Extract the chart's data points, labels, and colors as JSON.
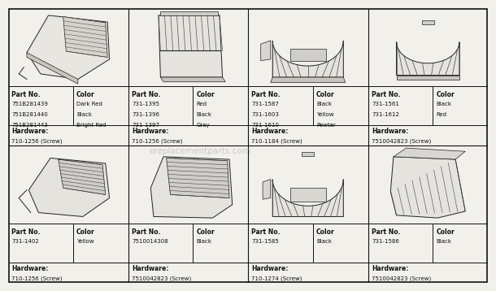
{
  "bg_color": "#f2f0eb",
  "border_color": "#111111",
  "line_color": "#222222",
  "cells": [
    {
      "col": 0,
      "row": 0,
      "parts": [
        {
          "no": "751B281439",
          "color": "Dark Red"
        },
        {
          "no": "751B281440",
          "color": "Black"
        },
        {
          "no": "751B281443",
          "color": "Bright Red"
        }
      ],
      "hardware": "710-1256 (Screw)"
    },
    {
      "col": 1,
      "row": 0,
      "parts": [
        {
          "no": "731-1395",
          "color": "Red"
        },
        {
          "no": "731-1396",
          "color": "Black"
        },
        {
          "no": "731-1397",
          "color": "Gray"
        }
      ],
      "hardware": "710-1256 (Screw)"
    },
    {
      "col": 2,
      "row": 0,
      "parts": [
        {
          "no": "731-1587",
          "color": "Black"
        },
        {
          "no": "731-1603",
          "color": "Yellow"
        },
        {
          "no": "731-1610",
          "color": "Pewter"
        }
      ],
      "hardware": "710-1184 (Screw)"
    },
    {
      "col": 3,
      "row": 0,
      "parts": [
        {
          "no": "731-1561",
          "color": "Black"
        },
        {
          "no": "731-1612",
          "color": "Red"
        }
      ],
      "hardware": "7510042823 (Screw)"
    },
    {
      "col": 0,
      "row": 1,
      "parts": [
        {
          "no": "731-1402",
          "color": "Yellow"
        }
      ],
      "hardware": "710-1256 (Screw)"
    },
    {
      "col": 1,
      "row": 1,
      "parts": [
        {
          "no": "7510014308",
          "color": "Black"
        }
      ],
      "hardware": "7510042823 (Screw)"
    },
    {
      "col": 2,
      "row": 1,
      "parts": [
        {
          "no": "731-1585",
          "color": "Black"
        }
      ],
      "hardware": "710-1274 (Screw)"
    },
    {
      "col": 3,
      "row": 1,
      "parts": [
        {
          "no": "731-1586",
          "color": "Black"
        }
      ],
      "hardware": "7510042823 (Screw)"
    }
  ],
  "ncols": 4,
  "nrows": 2,
  "text_color": "#111111",
  "watermark": "ereplacementparts.com"
}
